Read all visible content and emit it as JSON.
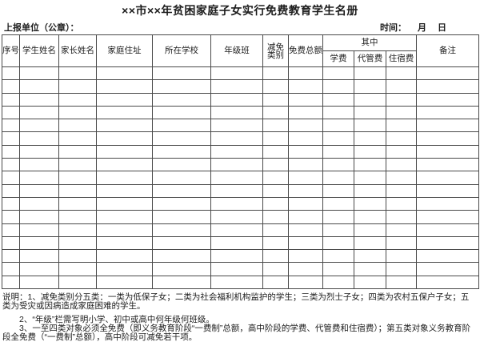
{
  "header": {
    "title": "××市××年贫困家庭子女实行免费教育学生名册",
    "report_unit_label": "上报单位（公章）：",
    "time_label": "时间：",
    "month_label": "月",
    "day_label": "日"
  },
  "table": {
    "columns": {
      "serial": "序号",
      "student_name": "学生姓名",
      "parent_name": "家长姓名",
      "home_address": "家庭住址",
      "school": "所在学校",
      "grade_class": "年级班",
      "waiver_category": "减免\n类别",
      "free_total": "免费总额",
      "among_which": "其中",
      "tuition": "学费",
      "agency_fee": "代管费",
      "boarding_fee": "住宿费",
      "remarks": "备注"
    },
    "body_row_count": 17,
    "body_col_count": 12
  },
  "notes": {
    "line1": "说明：1、减免类别分五类：一类为低保子女；二类为社会福利机构监护的学生；三类为烈士子女；四类为农村五保户子女；五类为受灾或因病造成家庭困难的学生。",
    "line2": "2、“年级”栏需写明小学、初中或高中何年级何班级。",
    "line3": "3、一至四类对象必须全免费（即义务教育阶段“一费制”总额，高中阶段的学费、代管费和住宿费）；第五类对象义务教育阶段全免费（“一费制”总额），高中阶段可减免若干项。"
  },
  "colors": {
    "border": "#4a4a4a",
    "text": "#1c1c1c",
    "background": "#ffffff"
  }
}
